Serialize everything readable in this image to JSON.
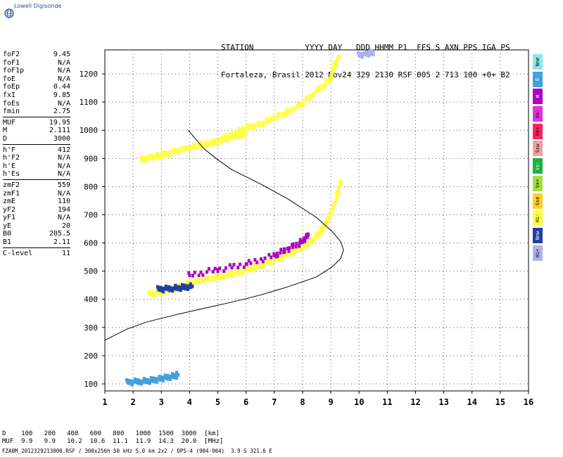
{
  "logo": {
    "text": "Lowell Digisonde",
    "icon": "globe-icon"
  },
  "header": {
    "line1": "STATION           YYYY DAY   DDD HHMM P1  FFS S AXN PPS IGA PS",
    "line2": "Fortaleza, Brasil 2012 Nov24 329 2130 RSF 005 2 713 100 +0+ B2"
  },
  "params": {
    "group1": [
      {
        "k": "foF2",
        "v": "9.45"
      },
      {
        "k": "foF1",
        "v": "N/A"
      },
      {
        "k": "foF1p",
        "v": "N/A"
      },
      {
        "k": "foE",
        "v": "N/A"
      },
      {
        "k": "foEp",
        "v": "0.44"
      },
      {
        "k": "fxI",
        "v": "9.85"
      },
      {
        "k": "foEs",
        "v": "N/A"
      },
      {
        "k": "fmin",
        "v": "2.75"
      }
    ],
    "group2": [
      {
        "k": "MUF",
        "v": "19.95"
      },
      {
        "k": "M",
        "v": "2.111"
      },
      {
        "k": "D",
        "v": "3000"
      }
    ],
    "group3": [
      {
        "k": "h'F",
        "v": "412"
      },
      {
        "k": "h'F2",
        "v": "N/A"
      },
      {
        "k": "h'E",
        "v": "N/A"
      },
      {
        "k": "h'Es",
        "v": "N/A"
      }
    ],
    "group4": [
      {
        "k": "zmF2",
        "v": "559"
      },
      {
        "k": "zmF1",
        "v": "N/A"
      },
      {
        "k": "zmE",
        "v": "110"
      },
      {
        "k": "yF2",
        "v": "194"
      },
      {
        "k": "yF1",
        "v": "N/A"
      },
      {
        "k": "yE",
        "v": "20"
      },
      {
        "k": "B0",
        "v": "205.5"
      },
      {
        "k": "B1",
        "v": "2.11"
      }
    ],
    "group5": [
      {
        "k": "C-level",
        "v": "11"
      }
    ]
  },
  "legend": [
    {
      "label": "Nne",
      "color": "#88e8e8"
    },
    {
      "label": "E",
      "color": "#40a0e0"
    },
    {
      "label": "W",
      "color": "#b000c0"
    },
    {
      "label": "Vo-",
      "color": "#e030e0"
    },
    {
      "label": "Vo+",
      "color": "#ff2060"
    },
    {
      "label": "Ssw",
      "color": "#f0a0a0"
    },
    {
      "label": "Vx-",
      "color": "#20b040"
    },
    {
      "label": "Vx+",
      "color": "#a0e040"
    },
    {
      "label": "Sse",
      "color": "#ffd020"
    },
    {
      "label": "Hi-",
      "color": "#ffff40"
    },
    {
      "label": "Nnw",
      "color": "#2040a0"
    },
    {
      "label": "Hi+",
      "color": "#b0b0f0"
    }
  ],
  "muf_table": {
    "d_label": "D",
    "muf_label": "MUF",
    "distances": [
      "100",
      "200",
      "400",
      "600",
      "800",
      "1000",
      "1500",
      "3000"
    ],
    "mufs": [
      "9.9",
      "9.9",
      "10.2",
      "10.6",
      "11.1",
      "11.9",
      "14.3",
      "20.0"
    ],
    "d_unit": "[km]",
    "muf_unit": "[MHz]"
  },
  "footer": "FZA0M_2012329213000.RSF / 300x256h 50 kHz 5.0 km 2x2 / DPS-4 (904-904)  3.9 S 321.6 E",
  "chart_data": {
    "type": "scatter",
    "xlabel": "",
    "ylabel": "",
    "xlim": [
      1,
      16
    ],
    "ylim": [
      75,
      1285
    ],
    "xticks": [
      1,
      2,
      3,
      4,
      5,
      6,
      7,
      8,
      9,
      10,
      11,
      12,
      13,
      14,
      15,
      16
    ],
    "yticks": [
      100,
      200,
      300,
      400,
      500,
      600,
      700,
      800,
      900,
      1000,
      1100,
      1200
    ],
    "grid": true,
    "profile_curve": {
      "name": "",
      "color": "#000000",
      "points": [
        [
          1,
          255
        ],
        [
          1.3,
          270
        ],
        [
          1.8,
          295
        ],
        [
          2.5,
          320
        ],
        [
          3.5,
          345
        ],
        [
          4.5,
          368
        ],
        [
          5.5,
          390
        ],
        [
          6.5,
          415
        ],
        [
          7.5,
          445
        ],
        [
          8.5,
          480
        ],
        [
          9.05,
          515
        ],
        [
          9.35,
          545
        ],
        [
          9.45,
          575
        ],
        [
          9.35,
          605
        ],
        [
          9.05,
          640
        ],
        [
          8.5,
          690
        ],
        [
          7.5,
          755
        ],
        [
          6.5,
          810
        ],
        [
          5.5,
          860
        ],
        [
          5,
          895
        ],
        [
          4.5,
          935
        ],
        [
          3.95,
          1000
        ]
      ]
    },
    "traces": [
      {
        "name": "Hi-",
        "color": "#ffff40",
        "points": [
          [
            2.6,
            418
          ],
          [
            3,
            425
          ],
          [
            3.5,
            440
          ],
          [
            4,
            455
          ],
          [
            4.5,
            468
          ],
          [
            5,
            478
          ],
          [
            5.5,
            490
          ],
          [
            6,
            503
          ],
          [
            6.5,
            520
          ],
          [
            7,
            540
          ],
          [
            7.5,
            560
          ],
          [
            8,
            585
          ],
          [
            8.3,
            605
          ],
          [
            8.6,
            635
          ],
          [
            8.8,
            665
          ],
          [
            9,
            705
          ],
          [
            9.2,
            760
          ],
          [
            9.35,
            820
          ]
        ]
      },
      {
        "name": "Hi-",
        "color": "#ffff40",
        "points": [
          [
            4.8,
            950
          ],
          [
            5.5,
            985
          ],
          [
            6,
            1010
          ],
          [
            6.5,
            1020
          ],
          [
            7,
            1045
          ],
          [
            7.5,
            1065
          ],
          [
            8,
            1095
          ],
          [
            8.5,
            1140
          ],
          [
            9,
            1180
          ],
          [
            9.1,
            1225
          ],
          [
            9.3,
            1260
          ]
        ]
      },
      {
        "name": "Hi-",
        "color": "#ffff40",
        "points": [
          [
            2.3,
            895
          ],
          [
            2.7,
            905
          ],
          [
            3,
            912
          ],
          [
            3.5,
            925
          ],
          [
            4,
            938
          ],
          [
            4.5,
            950
          ],
          [
            5,
            962
          ],
          [
            5.5,
            975
          ],
          [
            6,
            985
          ]
        ]
      },
      {
        "name": "W",
        "color": "#b000c0",
        "points": [
          [
            4,
            485
          ],
          [
            5,
            505
          ],
          [
            6,
            525
          ],
          [
            7,
            555
          ],
          [
            7.5,
            580
          ],
          [
            8,
            605
          ],
          [
            8.2,
            630
          ]
        ]
      },
      {
        "name": "E",
        "color": "#40a0e0",
        "points": [
          [
            1.8,
            105
          ],
          [
            2.2,
            108
          ],
          [
            2.6,
            112
          ],
          [
            3,
            118
          ],
          [
            3.3,
            125
          ],
          [
            3.6,
            132
          ]
        ]
      },
      {
        "name": "Nnw",
        "color": "#2040a0",
        "points": [
          [
            2.9,
            435
          ],
          [
            3.3,
            438
          ],
          [
            3.7,
            442
          ],
          [
            4.1,
            446
          ]
        ]
      },
      {
        "name": "Hi+",
        "color": "#b0b0f0",
        "points": [
          [
            10,
            1265
          ],
          [
            10.3,
            1272
          ],
          [
            10.5,
            1278
          ]
        ]
      }
    ]
  }
}
